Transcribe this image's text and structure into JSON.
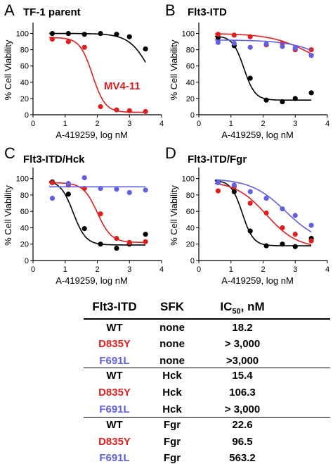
{
  "colors": {
    "black": "#000000",
    "red": "#e02020",
    "blue": "#6060e0"
  },
  "chart_data": [
    {
      "panel": "A",
      "type": "scatter",
      "title": "TF-1 parent",
      "xlabel": "A-419259, log nM",
      "ylabel": "% Cell Viability",
      "xlim": [
        0,
        4
      ],
      "ylim": [
        0,
        110
      ],
      "xticks": [
        0,
        1,
        2,
        3,
        4
      ],
      "yticks": [
        0,
        20,
        40,
        60,
        80,
        100
      ],
      "annotation": "MV4-11",
      "series": [
        {
          "color": "black",
          "x": [
            0.6,
            1.1,
            1.6,
            2.1,
            2.6,
            3.0,
            3.5
          ],
          "y": [
            100,
            100,
            99,
            100,
            99,
            96,
            81
          ],
          "fit": {
            "top": 100,
            "bottom": 0,
            "logic50": 3.7,
            "slope": 1.3
          }
        },
        {
          "color": "red",
          "x": [
            0.6,
            1.1,
            1.6,
            2.1,
            2.6,
            3.0,
            3.5
          ],
          "y": [
            93,
            90,
            83,
            10,
            6,
            5,
            4
          ],
          "fit": {
            "top": 95,
            "bottom": 3,
            "logic50": 1.85,
            "slope": 2.2
          }
        }
      ]
    },
    {
      "panel": "B",
      "type": "scatter",
      "title": "Flt3-ITD",
      "xlabel": "A-419259, log nM",
      "ylabel": "% Cell Viability",
      "xlim": [
        0,
        4
      ],
      "ylim": [
        0,
        110
      ],
      "xticks": [
        0,
        1,
        2,
        3,
        4
      ],
      "yticks": [
        0,
        20,
        40,
        60,
        80,
        100
      ],
      "series": [
        {
          "color": "black",
          "x": [
            0.6,
            1.1,
            1.6,
            2.1,
            2.6,
            3.0,
            3.5
          ],
          "y": [
            95,
            85,
            45,
            18,
            16,
            20,
            27
          ],
          "fit": {
            "top": 97,
            "bottom": 18,
            "logic50": 1.4,
            "slope": 2.5
          }
        },
        {
          "color": "red",
          "x": [
            0.6,
            1.1,
            1.6,
            2.1,
            2.6,
            3.0,
            3.5
          ],
          "y": [
            99,
            98,
            96,
            86,
            88,
            80,
            80
          ],
          "fit": {
            "top": 100,
            "bottom": 50,
            "logic50": 3.5,
            "slope": 0.7
          }
        },
        {
          "color": "blue",
          "x": [
            0.6,
            1.1,
            1.6,
            2.1,
            2.6,
            3.0,
            3.5
          ],
          "y": [
            89,
            88,
            83,
            87,
            84,
            82,
            73
          ],
          "fit": {
            "top": 92,
            "bottom": 40,
            "logic50": 4.2,
            "slope": 0.7
          }
        }
      ]
    },
    {
      "panel": "C",
      "type": "scatter",
      "title": "Flt3-ITD/Hck",
      "xlabel": "A-419259, log nM",
      "ylabel": "% Cell Viability",
      "xlim": [
        0,
        4
      ],
      "ylim": [
        0,
        110
      ],
      "xticks": [
        0,
        1,
        2,
        3,
        4
      ],
      "yticks": [
        0,
        20,
        40,
        60,
        80,
        100
      ],
      "series": [
        {
          "color": "black",
          "x": [
            0.6,
            1.1,
            1.6,
            2.1,
            2.6,
            3.0,
            3.5
          ],
          "y": [
            96,
            81,
            39,
            20,
            15,
            20,
            32
          ],
          "fit": {
            "top": 98,
            "bottom": 19,
            "logic50": 1.25,
            "slope": 2.2
          }
        },
        {
          "color": "red",
          "x": [
            0.6,
            1.1,
            1.6,
            2.1,
            2.6,
            3.0,
            3.5
          ],
          "y": [
            95,
            92,
            88,
            57,
            27,
            22,
            23
          ],
          "fit": {
            "top": 95,
            "bottom": 22,
            "logic50": 2.0,
            "slope": 2.0
          }
        },
        {
          "color": "blue",
          "x": [
            0.6,
            1.1,
            1.6,
            2.1,
            2.6,
            3.0,
            3.5
          ],
          "y": [
            76,
            94,
            101,
            88,
            87,
            83,
            86
          ],
          "fit": {
            "top": 90,
            "bottom": 90,
            "logic50": 2,
            "slope": 1
          }
        }
      ]
    },
    {
      "panel": "D",
      "type": "scatter",
      "title": "Flt3-ITD/Fgr",
      "xlabel": "A-419259, log nM",
      "ylabel": "% Cell Viability",
      "xlim": [
        0,
        4
      ],
      "ylim": [
        0,
        110
      ],
      "xticks": [
        0,
        1,
        2,
        3,
        4
      ],
      "yticks": [
        0,
        20,
        40,
        60,
        80,
        100
      ],
      "series": [
        {
          "color": "black",
          "x": [
            0.6,
            1.1,
            1.6,
            2.1,
            2.6,
            3.0,
            3.5
          ],
          "y": [
            96,
            84,
            36,
            18,
            20,
            17,
            27
          ],
          "fit": {
            "top": 98,
            "bottom": 18,
            "logic50": 1.35,
            "slope": 2.5
          }
        },
        {
          "color": "red",
          "x": [
            0.6,
            1.1,
            1.6,
            2.1,
            2.6,
            3.0,
            3.5
          ],
          "y": [
            85,
            90,
            70,
            58,
            40,
            32,
            24
          ],
          "fit": {
            "top": 97,
            "bottom": 15,
            "logic50": 2.1,
            "slope": 0.9
          }
        },
        {
          "color": "blue",
          "x": [
            0.6,
            1.1,
            1.6,
            2.1,
            2.6,
            3.0,
            3.5
          ],
          "y": [
            95,
            92,
            84,
            76,
            63,
            55,
            43
          ],
          "fit": {
            "top": 100,
            "bottom": 20,
            "logic50": 2.7,
            "slope": 0.8
          }
        }
      ]
    }
  ],
  "table": {
    "headers": {
      "flt3": "Flt3-ITD",
      "sfk": "SFK",
      "ic50_main": "IC",
      "ic50_sub": "50",
      "ic50_unit": ", nM"
    },
    "rows": [
      {
        "flt3": "WT",
        "flt3_color": "black",
        "sfk": "none",
        "ic50": "18.2"
      },
      {
        "flt3": "D835Y",
        "flt3_color": "red",
        "sfk": "none",
        "ic50": "> 3,000"
      },
      {
        "flt3": "F691L",
        "flt3_color": "blue",
        "sfk": "none",
        "ic50": ">3,000"
      },
      {
        "flt3": "WT",
        "flt3_color": "black",
        "sfk": "Hck",
        "ic50": "15.4"
      },
      {
        "flt3": "D835Y",
        "flt3_color": "red",
        "sfk": "Hck",
        "ic50": "106.3"
      },
      {
        "flt3": "F691L",
        "flt3_color": "blue",
        "sfk": "Hck",
        "ic50": "> 3,000"
      },
      {
        "flt3": "WT",
        "flt3_color": "black",
        "sfk": "Fgr",
        "ic50": "22.6"
      },
      {
        "flt3": "D835Y",
        "flt3_color": "red",
        "sfk": "Fgr",
        "ic50": "96.5"
      },
      {
        "flt3": "F691L",
        "flt3_color": "blue",
        "sfk": "Fgr",
        "ic50": "563.2"
      }
    ]
  }
}
